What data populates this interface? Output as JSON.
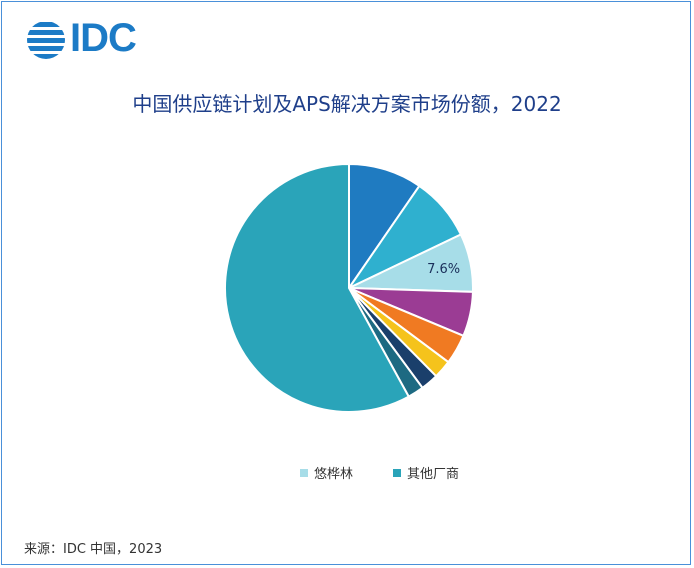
{
  "logo": {
    "text": "IDC",
    "color": "#1c7bc6"
  },
  "source": "来源：IDC 中国，2023",
  "chart_data": {
    "type": "pie",
    "title": "中国供应链计划及APS解决方案市场份额，2022",
    "legend_placement": "bottom",
    "slices": [
      {
        "name": "",
        "value": 9.6,
        "color": "#1f7bc1",
        "label": ""
      },
      {
        "name": "",
        "value": 8.3,
        "color": "#2fb0cf",
        "label": ""
      },
      {
        "name": "悠桦林",
        "value": 7.6,
        "color": "#a7dde8",
        "label": "7.6%"
      },
      {
        "name": "",
        "value": 5.8,
        "color": "#9b3c94",
        "label": ""
      },
      {
        "name": "",
        "value": 3.9,
        "color": "#f07a22",
        "label": ""
      },
      {
        "name": "",
        "value": 2.4,
        "color": "#f5c31c",
        "label": ""
      },
      {
        "name": "",
        "value": 2.3,
        "color": "#1a3f6b",
        "label": ""
      },
      {
        "name": "",
        "value": 2.1,
        "color": "#1d6a82",
        "label": ""
      },
      {
        "name": "其他厂商",
        "value": 58.0,
        "color": "#2aa4b9",
        "label": ""
      }
    ],
    "legend": [
      {
        "name": "悠桦林",
        "color": "#a7dde8"
      },
      {
        "name": "其他厂商",
        "color": "#2aa4b9"
      }
    ]
  }
}
